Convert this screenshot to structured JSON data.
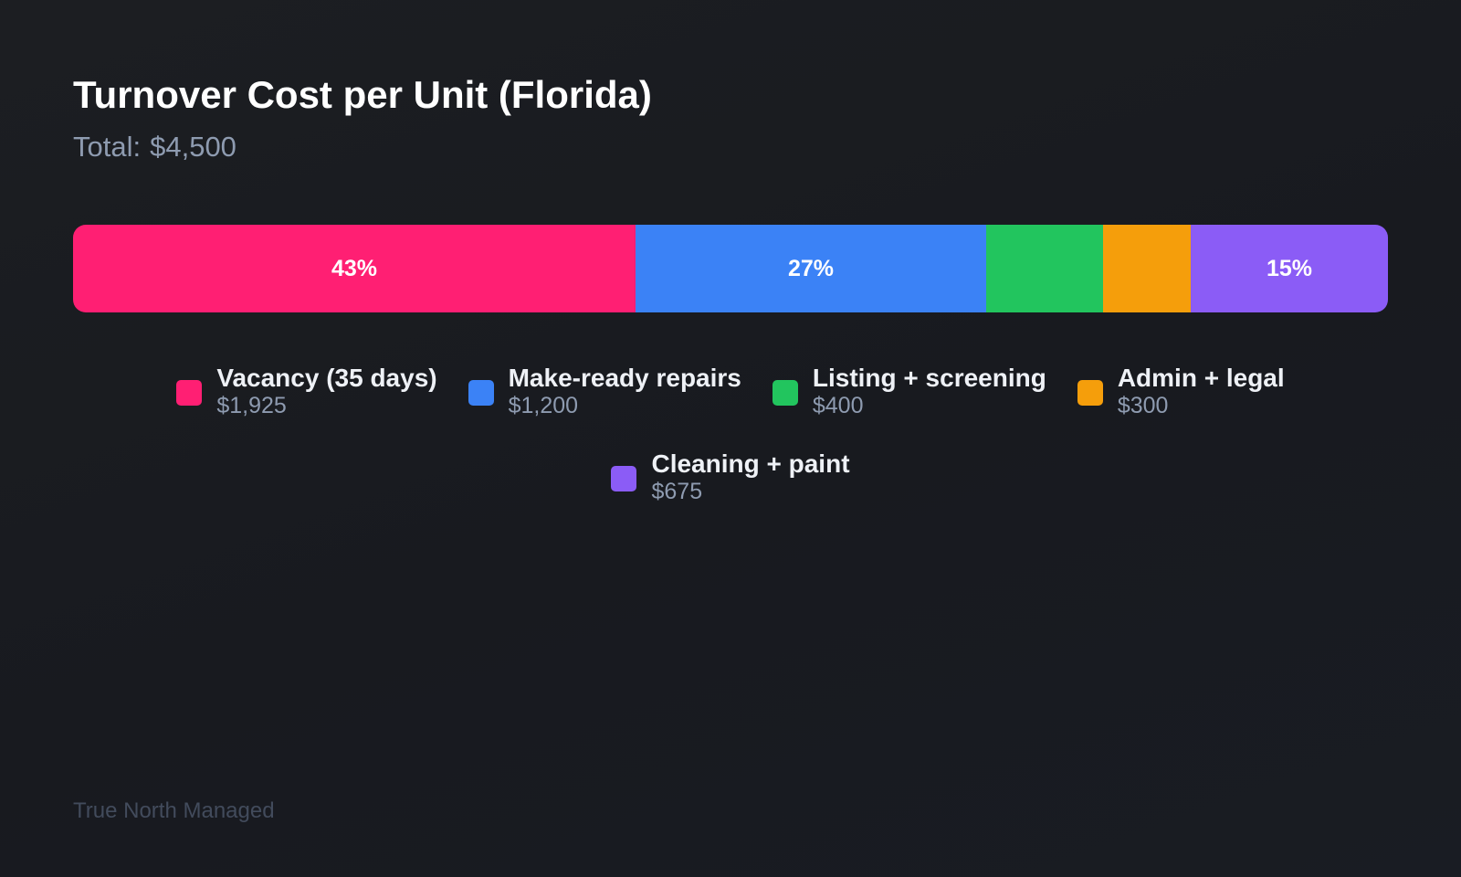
{
  "chart_data": {
    "type": "bar",
    "orientation": "horizontal-stacked",
    "title": "Turnover Cost per Unit (Florida)",
    "subtitle": {
      "label": "Total:",
      "value": "$4,500"
    },
    "categories": [
      "Vacancy (35 days)",
      "Make-ready repairs",
      "Listing + screening",
      "Admin + legal",
      "Cleaning + paint"
    ],
    "values": [
      1925,
      1200,
      400,
      300,
      675
    ],
    "value_labels": [
      "$1,925",
      "$1,200",
      "$400",
      "$300",
      "$675"
    ],
    "segment_labels": [
      "43%",
      "27%",
      "",
      "",
      "15%"
    ],
    "colors": [
      "#ff1f73",
      "#3b82f6",
      "#22c55e",
      "#f59e0b",
      "#8b5cf6"
    ],
    "legend_position": "bottom-center"
  },
  "footer": {
    "brand": "True North Managed"
  }
}
